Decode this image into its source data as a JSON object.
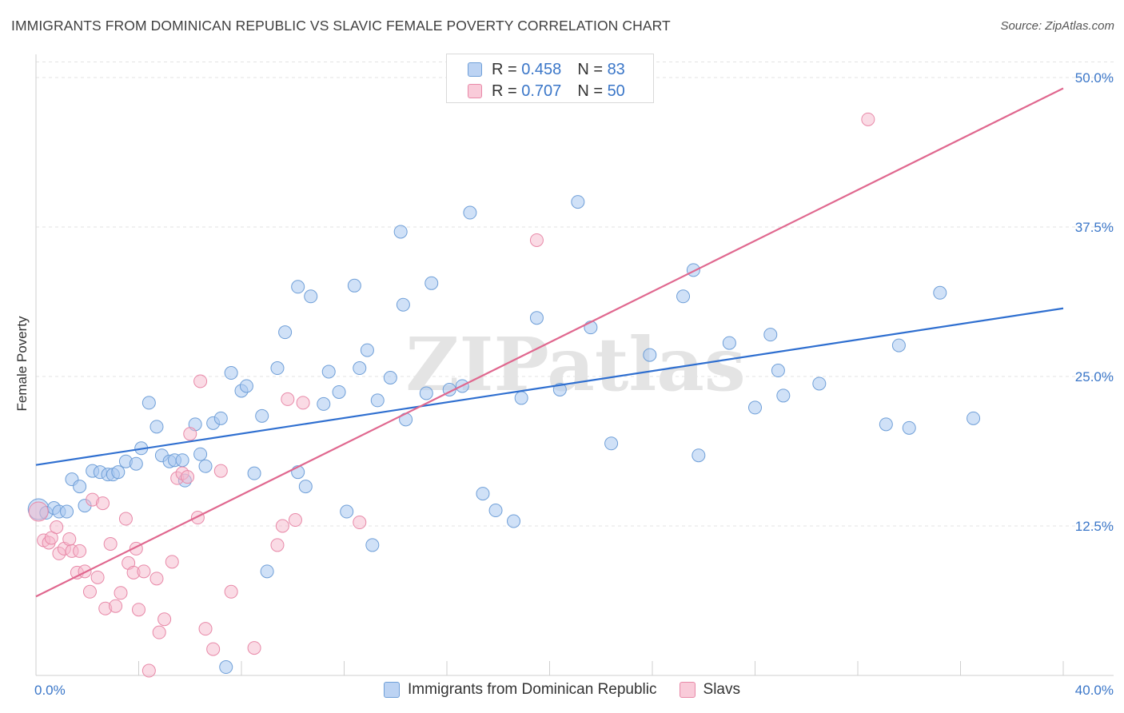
{
  "title": "IMMIGRANTS FROM DOMINICAN REPUBLIC VS SLAVIC FEMALE POVERTY CORRELATION CHART",
  "source": "Source: ZipAtlas.com",
  "watermark": "ZIPatlas",
  "legend": {
    "rows": [
      {
        "r_label": "R =",
        "r_value": "0.458",
        "n_label": "N =",
        "n_value": "83"
      },
      {
        "r_label": "R =",
        "r_value": "0.707",
        "n_label": "N =",
        "n_value": "50"
      }
    ]
  },
  "bottom_legend": [
    "Immigrants from Dominican Republic",
    "Slavs"
  ],
  "colors": {
    "blue_fill": "#a9c8f0",
    "blue_stroke": "#6f9fd8",
    "blue_line": "#2f6fd0",
    "pink_fill": "#f6b8cc",
    "pink_stroke": "#e889a8",
    "pink_line": "#e0688f",
    "axis_text": "#3a76c8",
    "grid": "#e3e3e3"
  },
  "chart_data": {
    "type": "scatter",
    "title": "IMMIGRANTS FROM DOMINICAN REPUBLIC VS SLAVIC FEMALE POVERTY CORRELATION CHART",
    "xlabel": "",
    "ylabel": "Female Poverty",
    "xlim": [
      0,
      40
    ],
    "ylim": [
      0,
      50
    ],
    "x_tick_labels": [
      "0.0%",
      "40.0%"
    ],
    "y_ticks": [
      12.5,
      25.0,
      37.5,
      50.0
    ],
    "y_tick_labels": [
      "12.5%",
      "25.0%",
      "37.5%",
      "50.0%"
    ],
    "grid": true,
    "legend_position": "top-center",
    "series": [
      {
        "name": "Immigrants from Dominican Republic",
        "R": 0.458,
        "N": 83,
        "trend": {
          "x": [
            0,
            40
          ],
          "y": [
            17.6,
            30.7
          ]
        },
        "points": [
          [
            0.1,
            13.9
          ],
          [
            0.4,
            13.6
          ],
          [
            0.7,
            14.0
          ],
          [
            0.9,
            13.7
          ],
          [
            1.2,
            13.7
          ],
          [
            1.4,
            16.4
          ],
          [
            1.7,
            15.8
          ],
          [
            1.9,
            14.2
          ],
          [
            2.2,
            17.1
          ],
          [
            2.5,
            17.0
          ],
          [
            2.8,
            16.8
          ],
          [
            3.0,
            16.8
          ],
          [
            3.2,
            17.0
          ],
          [
            3.5,
            17.9
          ],
          [
            3.9,
            17.7
          ],
          [
            4.1,
            19.0
          ],
          [
            4.4,
            22.8
          ],
          [
            4.7,
            20.8
          ],
          [
            4.9,
            18.4
          ],
          [
            5.2,
            17.9
          ],
          [
            5.4,
            18.0
          ],
          [
            5.7,
            18.0
          ],
          [
            5.8,
            16.3
          ],
          [
            6.2,
            21.0
          ],
          [
            6.4,
            18.5
          ],
          [
            6.6,
            17.5
          ],
          [
            6.9,
            21.1
          ],
          [
            7.2,
            21.5
          ],
          [
            7.6,
            25.3
          ],
          [
            8.0,
            23.8
          ],
          [
            8.2,
            24.2
          ],
          [
            8.5,
            16.9
          ],
          [
            8.8,
            21.7
          ],
          [
            9.0,
            8.7
          ],
          [
            9.4,
            25.7
          ],
          [
            9.7,
            28.7
          ],
          [
            10.2,
            17.0
          ],
          [
            10.2,
            32.5
          ],
          [
            10.5,
            15.8
          ],
          [
            10.7,
            31.7
          ],
          [
            11.2,
            22.7
          ],
          [
            11.4,
            25.4
          ],
          [
            11.8,
            23.7
          ],
          [
            12.1,
            13.7
          ],
          [
            12.4,
            32.6
          ],
          [
            12.6,
            25.7
          ],
          [
            12.9,
            27.2
          ],
          [
            13.1,
            10.9
          ],
          [
            13.3,
            23.0
          ],
          [
            13.8,
            24.9
          ],
          [
            14.2,
            37.1
          ],
          [
            14.3,
            31.0
          ],
          [
            14.4,
            21.4
          ],
          [
            15.2,
            23.6
          ],
          [
            15.4,
            32.8
          ],
          [
            16.1,
            23.9
          ],
          [
            16.6,
            24.2
          ],
          [
            16.9,
            38.7
          ],
          [
            17.4,
            15.2
          ],
          [
            17.9,
            13.8
          ],
          [
            18.6,
            12.9
          ],
          [
            18.9,
            23.2
          ],
          [
            19.5,
            29.9
          ],
          [
            20.4,
            23.9
          ],
          [
            21.1,
            39.6
          ],
          [
            21.6,
            29.1
          ],
          [
            22.4,
            19.4
          ],
          [
            23.9,
            26.8
          ],
          [
            25.2,
            31.7
          ],
          [
            25.6,
            33.9
          ],
          [
            25.8,
            18.4
          ],
          [
            27.0,
            27.8
          ],
          [
            28.0,
            22.4
          ],
          [
            28.6,
            28.5
          ],
          [
            28.9,
            25.5
          ],
          [
            29.1,
            23.4
          ],
          [
            30.5,
            24.4
          ],
          [
            33.1,
            21.0
          ],
          [
            33.6,
            27.6
          ],
          [
            34.0,
            20.7
          ],
          [
            35.2,
            32.0
          ],
          [
            36.5,
            21.5
          ],
          [
            7.4,
            0.7
          ]
        ]
      },
      {
        "name": "Slavs",
        "R": 0.707,
        "N": 50,
        "trend": {
          "x": [
            0,
            40
          ],
          "y": [
            6.6,
            49.1
          ]
        },
        "points": [
          [
            0.1,
            13.7
          ],
          [
            0.3,
            11.3
          ],
          [
            0.5,
            11.1
          ],
          [
            0.6,
            11.5
          ],
          [
            0.8,
            12.4
          ],
          [
            0.9,
            10.2
          ],
          [
            1.1,
            10.6
          ],
          [
            1.3,
            11.4
          ],
          [
            1.4,
            10.4
          ],
          [
            1.6,
            8.6
          ],
          [
            1.7,
            10.4
          ],
          [
            1.9,
            8.7
          ],
          [
            2.1,
            7.0
          ],
          [
            2.2,
            14.7
          ],
          [
            2.4,
            8.2
          ],
          [
            2.6,
            14.4
          ],
          [
            2.7,
            5.6
          ],
          [
            2.9,
            11.0
          ],
          [
            3.1,
            5.8
          ],
          [
            3.3,
            6.9
          ],
          [
            3.5,
            13.1
          ],
          [
            3.6,
            9.4
          ],
          [
            3.8,
            8.6
          ],
          [
            3.9,
            10.6
          ],
          [
            4.0,
            5.5
          ],
          [
            4.2,
            8.7
          ],
          [
            4.4,
            0.4
          ],
          [
            4.7,
            8.1
          ],
          [
            4.8,
            3.6
          ],
          [
            5.0,
            4.7
          ],
          [
            5.3,
            9.5
          ],
          [
            5.5,
            16.5
          ],
          [
            5.7,
            16.9
          ],
          [
            5.9,
            16.6
          ],
          [
            6.0,
            20.2
          ],
          [
            6.3,
            13.2
          ],
          [
            6.4,
            24.6
          ],
          [
            6.6,
            3.9
          ],
          [
            6.9,
            2.2
          ],
          [
            7.2,
            17.1
          ],
          [
            7.6,
            7.0
          ],
          [
            8.5,
            2.3
          ],
          [
            9.4,
            10.9
          ],
          [
            9.6,
            12.5
          ],
          [
            9.8,
            23.1
          ],
          [
            10.1,
            13.0
          ],
          [
            10.4,
            22.8
          ],
          [
            12.6,
            12.8
          ],
          [
            19.5,
            36.4
          ],
          [
            32.4,
            46.5
          ]
        ]
      }
    ]
  }
}
